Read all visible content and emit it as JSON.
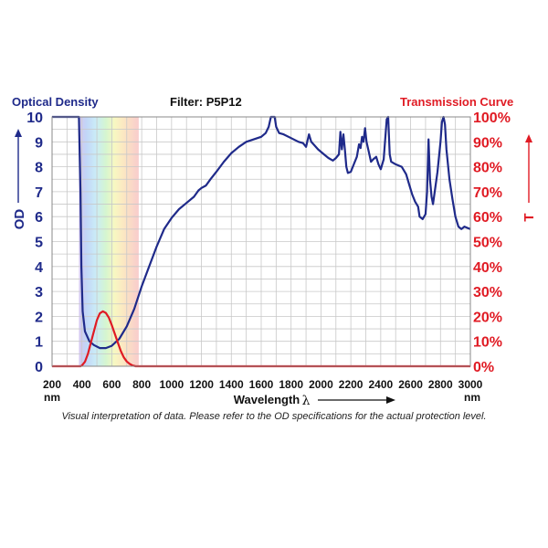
{
  "header": {
    "left_title": "Optical Density",
    "center_title": "Filter: P5P12",
    "right_title": "Transmission Curve"
  },
  "footer_note": "Visual interpretation of data. Please refer to the OD specifications for the actual protection level.",
  "colors": {
    "od": "#1f2a8a",
    "transmission": "#e01b24",
    "grid": "#c8c8c8"
  },
  "chart_data": {
    "type": "line",
    "xlabel": "Wavelength",
    "xlabel_symbol": "λ",
    "x_unit": "nm",
    "xlim": [
      200,
      3000
    ],
    "x_ticks": [
      200,
      400,
      600,
      800,
      1000,
      1200,
      1400,
      1600,
      1800,
      2000,
      2200,
      2400,
      2600,
      2800,
      3000
    ],
    "y_left": {
      "label": "OD",
      "lim": [
        0,
        10
      ],
      "ticks": [
        "0",
        "1",
        "2",
        "3",
        "4",
        "5",
        "6",
        "7",
        "8",
        "9",
        "10"
      ]
    },
    "y_right": {
      "label": "T",
      "lim": [
        0,
        100
      ],
      "ticks": [
        "0%",
        "10%",
        "20%",
        "30%",
        "40%",
        "50%",
        "60%",
        "70%",
        "80%",
        "90%",
        "100%"
      ]
    },
    "grid": true,
    "visible_band_nm": [
      380,
      780
    ],
    "series": [
      {
        "axis": "left",
        "points": [
          [
            200,
            10
          ],
          [
            380,
            10
          ],
          [
            390,
            7
          ],
          [
            396,
            4
          ],
          [
            405,
            2.2
          ],
          [
            420,
            1.4
          ],
          [
            450,
            1.0
          ],
          [
            480,
            0.85
          ],
          [
            520,
            0.73
          ],
          [
            560,
            0.73
          ],
          [
            600,
            0.82
          ],
          [
            650,
            1.1
          ],
          [
            700,
            1.6
          ],
          [
            750,
            2.3
          ],
          [
            800,
            3.2
          ],
          [
            850,
            4.0
          ],
          [
            900,
            4.8
          ],
          [
            950,
            5.5
          ],
          [
            1000,
            5.95
          ],
          [
            1050,
            6.3
          ],
          [
            1100,
            6.55
          ],
          [
            1150,
            6.8
          ],
          [
            1180,
            7.05
          ],
          [
            1200,
            7.15
          ],
          [
            1230,
            7.25
          ],
          [
            1260,
            7.5
          ],
          [
            1300,
            7.8
          ],
          [
            1350,
            8.2
          ],
          [
            1400,
            8.55
          ],
          [
            1450,
            8.8
          ],
          [
            1500,
            9.0
          ],
          [
            1550,
            9.1
          ],
          [
            1600,
            9.2
          ],
          [
            1630,
            9.35
          ],
          [
            1650,
            9.6
          ],
          [
            1665,
            10
          ],
          [
            1690,
            10
          ],
          [
            1700,
            9.6
          ],
          [
            1720,
            9.35
          ],
          [
            1750,
            9.3
          ],
          [
            1800,
            9.15
          ],
          [
            1850,
            9.0
          ],
          [
            1880,
            8.95
          ],
          [
            1900,
            8.8
          ],
          [
            1920,
            9.3
          ],
          [
            1935,
            9.0
          ],
          [
            1950,
            8.9
          ],
          [
            1980,
            8.7
          ],
          [
            2020,
            8.5
          ],
          [
            2050,
            8.35
          ],
          [
            2080,
            8.25
          ],
          [
            2100,
            8.35
          ],
          [
            2120,
            8.5
          ],
          [
            2130,
            9.4
          ],
          [
            2140,
            8.7
          ],
          [
            2150,
            9.3
          ],
          [
            2160,
            8.7
          ],
          [
            2170,
            8.0
          ],
          [
            2180,
            7.75
          ],
          [
            2200,
            7.8
          ],
          [
            2220,
            8.1
          ],
          [
            2240,
            8.4
          ],
          [
            2255,
            8.9
          ],
          [
            2265,
            8.75
          ],
          [
            2275,
            9.2
          ],
          [
            2285,
            9.0
          ],
          [
            2295,
            9.55
          ],
          [
            2305,
            9.0
          ],
          [
            2320,
            8.6
          ],
          [
            2335,
            8.2
          ],
          [
            2350,
            8.3
          ],
          [
            2370,
            8.4
          ],
          [
            2385,
            8.1
          ],
          [
            2400,
            7.9
          ],
          [
            2420,
            8.3
          ],
          [
            2440,
            9.9
          ],
          [
            2450,
            10
          ],
          [
            2460,
            8.5
          ],
          [
            2470,
            8.2
          ],
          [
            2500,
            8.1
          ],
          [
            2540,
            8.0
          ],
          [
            2570,
            7.7
          ],
          [
            2590,
            7.3
          ],
          [
            2610,
            6.9
          ],
          [
            2630,
            6.6
          ],
          [
            2650,
            6.4
          ],
          [
            2660,
            6.0
          ],
          [
            2680,
            5.9
          ],
          [
            2700,
            6.1
          ],
          [
            2710,
            7.0
          ],
          [
            2720,
            9.1
          ],
          [
            2730,
            7.5
          ],
          [
            2740,
            6.8
          ],
          [
            2750,
            6.5
          ],
          [
            2780,
            7.8
          ],
          [
            2800,
            9.0
          ],
          [
            2810,
            9.8
          ],
          [
            2820,
            10
          ],
          [
            2830,
            9.7
          ],
          [
            2840,
            8.7
          ],
          [
            2860,
            7.5
          ],
          [
            2880,
            6.7
          ],
          [
            2900,
            6.0
          ],
          [
            2920,
            5.6
          ],
          [
            2940,
            5.5
          ],
          [
            2960,
            5.6
          ],
          [
            2980,
            5.55
          ],
          [
            3000,
            5.5
          ]
        ]
      },
      {
        "axis": "right",
        "points": [
          [
            200,
            0
          ],
          [
            390,
            0
          ],
          [
            400,
            0.3
          ],
          [
            420,
            1.8
          ],
          [
            440,
            5
          ],
          [
            460,
            9.5
          ],
          [
            480,
            14
          ],
          [
            500,
            18.5
          ],
          [
            520,
            21.2
          ],
          [
            540,
            22
          ],
          [
            560,
            21.4
          ],
          [
            580,
            19.5
          ],
          [
            600,
            16.5
          ],
          [
            620,
            13
          ],
          [
            640,
            9.5
          ],
          [
            660,
            6.2
          ],
          [
            680,
            3.6
          ],
          [
            700,
            1.9
          ],
          [
            720,
            0.9
          ],
          [
            740,
            0.3
          ],
          [
            760,
            0
          ],
          [
            3000,
            0
          ]
        ]
      }
    ]
  }
}
